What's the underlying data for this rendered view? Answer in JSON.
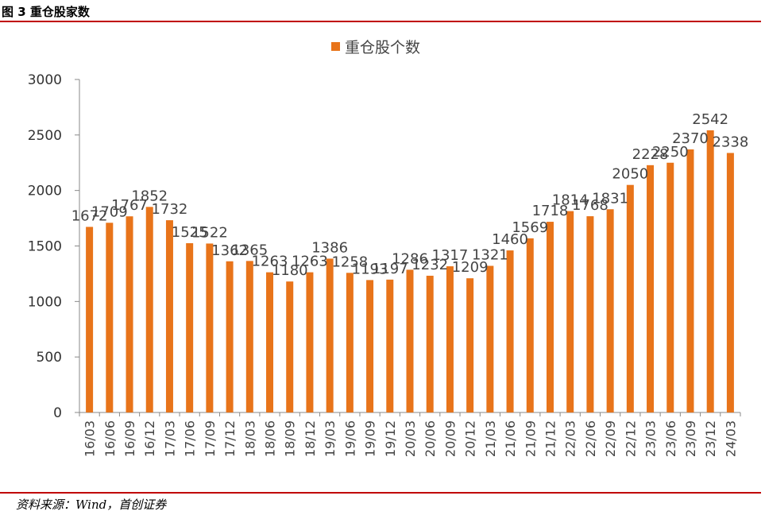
{
  "header": {
    "figure_title": "图 3 重仓股家数"
  },
  "footer": {
    "source": "资料来源：Wind，首创证券"
  },
  "colors": {
    "bar": "#e8741a",
    "rule": "#c00000",
    "axis": "#888888"
  },
  "chart_data": {
    "type": "bar",
    "legend": {
      "position": "top-center",
      "label": "重仓股个数"
    },
    "categories": [
      "16/03",
      "16/06",
      "16/09",
      "16/12",
      "17/03",
      "17/06",
      "17/09",
      "17/12",
      "18/03",
      "18/06",
      "18/09",
      "18/12",
      "19/03",
      "19/06",
      "19/09",
      "19/12",
      "20/03",
      "20/06",
      "20/09",
      "20/12",
      "21/03",
      "21/06",
      "21/09",
      "21/12",
      "22/03",
      "22/06",
      "22/09",
      "22/12",
      "23/03",
      "23/06",
      "23/09",
      "23/12",
      "24/03"
    ],
    "series": [
      {
        "name": "重仓股个数",
        "values": [
          1672,
          1709,
          1767,
          1852,
          1732,
          1525,
          1522,
          1362,
          1365,
          1263,
          1180,
          1263,
          1386,
          1258,
          1193,
          1197,
          1286,
          1232,
          1317,
          1209,
          1321,
          1460,
          1569,
          1718,
          1814,
          1768,
          1831,
          2050,
          2228,
          2250,
          2370,
          2542,
          2338
        ]
      }
    ],
    "ylim": [
      0,
      3000
    ],
    "yticks": [
      0,
      500,
      1000,
      1500,
      2000,
      2500,
      3000
    ],
    "grid": false,
    "xlabel": "",
    "ylabel": ""
  }
}
